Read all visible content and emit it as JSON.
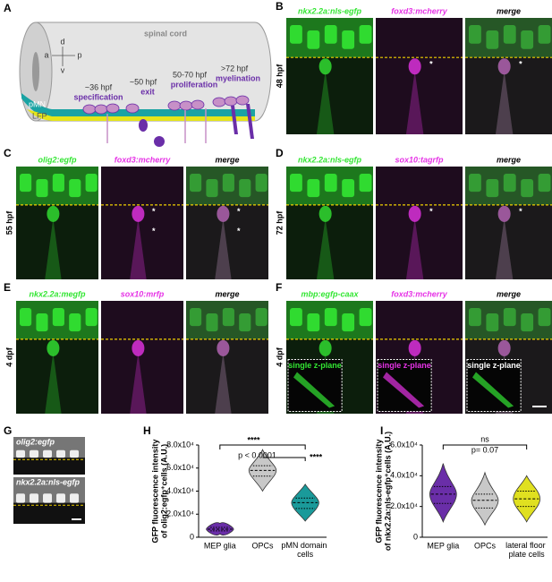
{
  "A": {
    "label": "A",
    "title": "spinal cord",
    "axes": [
      "d",
      "v",
      "a",
      "p"
    ],
    "stages": [
      {
        "time": "~36 hpf",
        "name": "specification"
      },
      {
        "time": "~50 hpf",
        "name": "exit"
      },
      {
        "time": "50-70 hpf",
        "name": "proliferation"
      },
      {
        "time": ">72 hpf",
        "name": "myelination"
      }
    ],
    "regions": [
      "pMN",
      "LFP"
    ]
  },
  "B": {
    "label": "B",
    "time": "48 hpf",
    "channels": [
      {
        "name": "nkx2.2a:nls-egfp",
        "color": "#33e633",
        "annotations": []
      },
      {
        "name": "foxd3:mcherry",
        "color": "#e633e6",
        "annotations": [
          "*"
        ]
      },
      {
        "name": "merge",
        "color": "#ffffff",
        "annotations": [
          "*"
        ]
      }
    ]
  },
  "C": {
    "label": "C",
    "time": "55 hpf",
    "channels": [
      {
        "name": "olig2:egfp",
        "color": "#33e633",
        "annotations": []
      },
      {
        "name": "foxd3:mcherry",
        "color": "#e633e6",
        "annotations": [
          "*",
          "*"
        ]
      },
      {
        "name": "merge",
        "color": "#ffffff",
        "annotations": [
          "*",
          "*"
        ]
      }
    ]
  },
  "D": {
    "label": "D",
    "time": "72 hpf",
    "channels": [
      {
        "name": "nkx2.2a:nls-egfp",
        "color": "#33e633",
        "annotations": []
      },
      {
        "name": "sox10:tagrfp",
        "color": "#e633e6",
        "annotations": [
          "*"
        ]
      },
      {
        "name": "merge",
        "color": "#ffffff",
        "annotations": [
          "*"
        ]
      }
    ]
  },
  "E": {
    "label": "E",
    "time": "4 dpf",
    "channels": [
      {
        "name": "nkx2.2a:megfp",
        "color": "#33e633",
        "annotations": []
      },
      {
        "name": "sox10:mrfp",
        "color": "#e633e6",
        "annotations": []
      },
      {
        "name": "merge",
        "color": "#ffffff",
        "annotations": []
      }
    ]
  },
  "F": {
    "label": "F",
    "time": "4 dpf",
    "channels": [
      {
        "name": "mbp:egfp-caax",
        "color": "#33e633",
        "annotations": [],
        "inset": "single z-plane"
      },
      {
        "name": "foxd3:mcherry",
        "color": "#e633e6",
        "annotations": [],
        "inset": "single z-plane"
      },
      {
        "name": "merge",
        "color": "#ffffff",
        "annotations": [],
        "inset": "single z-plane"
      }
    ]
  },
  "G": {
    "label": "G",
    "channels": [
      "olig2:egfp",
      "nkx2.2a:nls-egfp"
    ]
  },
  "chart_data": [
    {
      "type": "violin",
      "label": "H",
      "ylabel": [
        "GFP fluorescence intensity",
        "of olig2:egfp⁺cells (A.U.)"
      ],
      "categories": [
        "MEP glia",
        "OPCs",
        "pMN domain cells"
      ],
      "colors": [
        "#6a2ea8",
        "#c8c8c8",
        "#1a9a9a"
      ],
      "min": [
        3000,
        40000,
        14000
      ],
      "q1": [
        5500,
        53000,
        25000
      ],
      "median": [
        7000,
        58000,
        30000
      ],
      "q3": [
        8500,
        62000,
        34000
      ],
      "max": [
        12000,
        76000,
        46000
      ],
      "ylim": [
        0,
        80000
      ],
      "yticks": [
        0,
        {
          "value": 20000,
          "label": "2.0x10⁴"
        },
        {
          "value": 40000,
          "label": "4.0x10⁴"
        },
        {
          "value": 60000,
          "label": "6.0x10⁴"
        },
        {
          "value": 80000,
          "label": "8.0x10⁴"
        }
      ],
      "annotations": [
        "****",
        "p < 0.0001",
        "****"
      ]
    },
    {
      "type": "violin",
      "label": "I",
      "ylabel": [
        "GFP fluorescence intensity",
        "of nkx2.2a:nls-egfp⁺cells (A.U.)"
      ],
      "categories": [
        "MEP glia",
        "OPCs",
        "lateral floor plate cells"
      ],
      "colors": [
        "#6a2ea8",
        "#c8c8c8",
        "#e0e020"
      ],
      "min": [
        10000,
        8000,
        10000
      ],
      "q1": [
        22000,
        19000,
        20000
      ],
      "median": [
        28000,
        24000,
        25000
      ],
      "q3": [
        33000,
        28000,
        30000
      ],
      "max": [
        48000,
        42000,
        40000
      ],
      "ylim": [
        0,
        60000
      ],
      "yticks": [
        0,
        {
          "value": 20000,
          "label": "2.0x10⁴"
        },
        {
          "value": 40000,
          "label": "4.0x10⁴"
        },
        {
          "value": 60000,
          "label": "6.0x10⁴"
        }
      ],
      "annotations": [
        "ns",
        "p= 0.07"
      ]
    }
  ]
}
